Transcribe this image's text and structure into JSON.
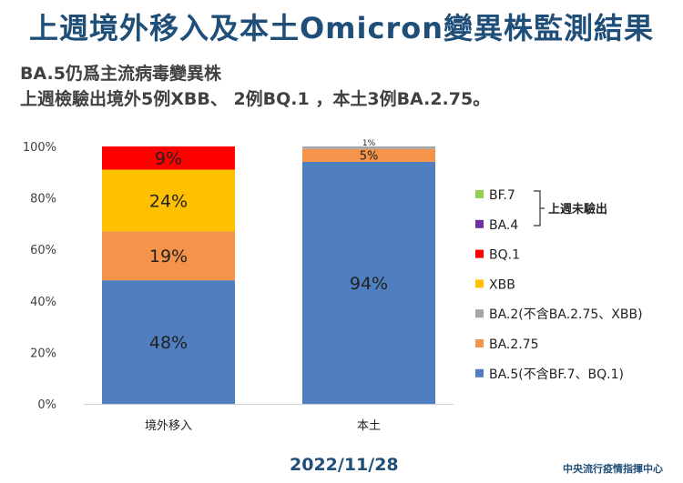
{
  "title": "上週境外移入及本土Omicron變異株監測結果",
  "subtitle_line1": "BA.5仍爲主流病毒變異株",
  "subtitle_line2": "上週檢驗出境外5例XBB、 2例BQ.1 ，本土3例BA.2.75。",
  "date": "2022/11/28",
  "agency": "中央流行疫情指揮中心",
  "chart_data": {
    "type": "bar",
    "stacked": true,
    "categories": [
      "境外移入",
      "本土"
    ],
    "ylim": [
      0,
      100
    ],
    "y_ticks": [
      0,
      20,
      40,
      60,
      80,
      100
    ],
    "y_tick_labels": [
      "0%",
      "20%",
      "40%",
      "60%",
      "80%",
      "100%"
    ],
    "grid": false,
    "legend_position": "right",
    "legend_bracket_label": "上週未驗出",
    "series": [
      {
        "name": "BA.5(不含BF.7、BQ.1)",
        "color": "#4f7fc1",
        "values": [
          48,
          94
        ],
        "labels": [
          "48%",
          "94%"
        ]
      },
      {
        "name": "BA.2.75",
        "color": "#f3944a",
        "values": [
          19,
          5
        ],
        "labels": [
          "19%",
          "5%"
        ]
      },
      {
        "name": "BA.2(不含BA.2.75、XBB)",
        "color": "#a5a5a5",
        "values": [
          0,
          1
        ],
        "labels": [
          "",
          "1%"
        ]
      },
      {
        "name": "XBB",
        "color": "#ffc000",
        "values": [
          24,
          0
        ],
        "labels": [
          "24%",
          ""
        ]
      },
      {
        "name": "BQ.1",
        "color": "#ff0000",
        "values": [
          9,
          0
        ],
        "labels": [
          "9%",
          ""
        ]
      },
      {
        "name": "BA.4",
        "color": "#7030a0",
        "values": [
          0,
          0
        ],
        "labels": [
          "",
          ""
        ]
      },
      {
        "name": "BF.7",
        "color": "#92d050",
        "values": [
          0,
          0
        ],
        "labels": [
          "",
          ""
        ]
      }
    ]
  }
}
